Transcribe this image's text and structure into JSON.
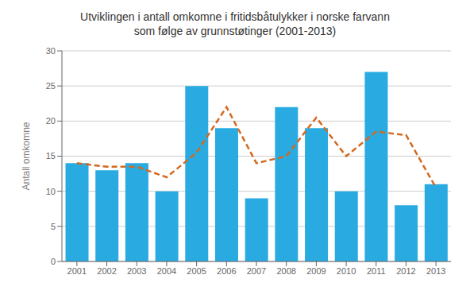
{
  "chart_data": {
    "type": "bar",
    "title": "Utviklingen i antall omkomne i fritidsbåtulykker i norske farvann\nsom følge av grunnstøtinger (2001-2013)",
    "ylabel": "Antall omkomne",
    "categories": [
      "2001",
      "2002",
      "2003",
      "2004",
      "2005",
      "2006",
      "2007",
      "2008",
      "2009",
      "2010",
      "2011",
      "2012",
      "2013"
    ],
    "series": [
      {
        "type": "bar",
        "color": "#29ABE2",
        "values": [
          14,
          13,
          14,
          10,
          25,
          19,
          9,
          22,
          19,
          10,
          27,
          8,
          11
        ]
      },
      {
        "type": "line",
        "color": "#D4691E",
        "line_style": "dashed",
        "values": [
          14,
          13.5,
          13.5,
          12,
          15.5,
          22,
          14,
          15,
          20.5,
          15,
          18.5,
          18,
          10.5
        ]
      }
    ],
    "ylim": [
      0,
      30
    ],
    "yticks": [
      0,
      5,
      10,
      15,
      20,
      25,
      30
    ],
    "grid": true
  }
}
